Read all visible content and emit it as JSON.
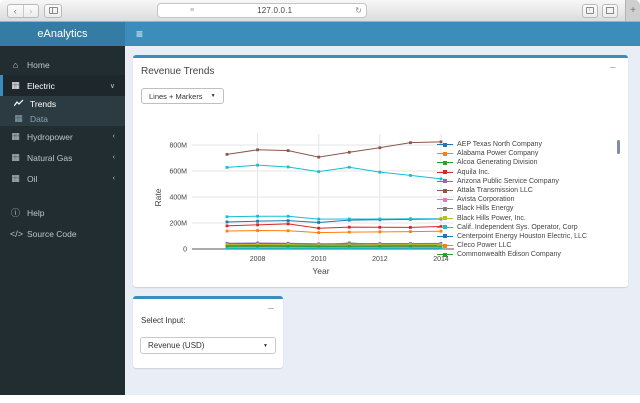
{
  "chrome": {
    "url": "127.0.0.1",
    "back_glyph": "‹",
    "forward_glyph": "›",
    "reader_glyph": "≡",
    "refresh_glyph": "↻",
    "new_tab_glyph": "+"
  },
  "header": {
    "brand": "eAnalytics",
    "menu_toggle_glyph": "≡"
  },
  "sidebar": {
    "items": [
      {
        "id": "home",
        "label": "Home",
        "icon": "home-icon",
        "glyph": "⌂"
      },
      {
        "id": "electric",
        "label": "Electric",
        "icon": "grid-icon",
        "glyph": "▦",
        "chevron": "∨",
        "active": true
      },
      {
        "id": "trends",
        "label": "Trends",
        "icon": "line-chart-icon",
        "glyph": "chart",
        "sub": true,
        "selected": true
      },
      {
        "id": "data",
        "label": "Data",
        "icon": "data-table-icon",
        "glyph": "▦",
        "sub": true
      },
      {
        "id": "hydropower",
        "label": "Hydropower",
        "icon": "grid-icon",
        "glyph": "▦",
        "chevron": "‹"
      },
      {
        "id": "natural-gas",
        "label": "Natural Gas",
        "icon": "grid-icon",
        "glyph": "▦",
        "chevron": "‹"
      },
      {
        "id": "oil",
        "label": "Oil",
        "icon": "grid-icon",
        "glyph": "▦",
        "chevron": "‹"
      },
      {
        "id": "help",
        "label": "Help",
        "icon": "info-icon",
        "glyph": "ⓘ",
        "gap": true
      },
      {
        "id": "source-code",
        "label": "Source Code",
        "icon": "code-icon",
        "glyph": "</>"
      }
    ]
  },
  "panels": {
    "revenue_trends": {
      "title": "Revenue Trends",
      "collapse_glyph": "−",
      "type_selector": {
        "value": "Lines + Markers",
        "caret": "▼"
      }
    },
    "select_input": {
      "collapse_glyph": "−",
      "label": "Select Input:",
      "dropdown": {
        "value": "Revenue (USD)",
        "caret": "▼"
      }
    }
  },
  "chart_data": {
    "type": "line",
    "mode": "lines+markers",
    "marker_shape": "square",
    "xlabel": "Year",
    "ylabel": "Rate",
    "x": [
      2007,
      2008,
      2009,
      2010,
      2011,
      2012,
      2013,
      2014
    ],
    "xticks": [
      2008,
      2010,
      2012,
      2014
    ],
    "ytick_values": [
      0,
      200,
      400,
      600,
      800
    ],
    "ytick_labels": [
      "0",
      "200M",
      "400M",
      "600M",
      "800M"
    ],
    "ylim": [
      0,
      880
    ],
    "value_unit": "millions USD",
    "grid": true,
    "legend_position": "right",
    "legend_scrollable": true,
    "series": [
      {
        "name": "AEP Texas North Company",
        "color": "#1f77b4",
        "in_legend": true,
        "values": [
          38,
          40,
          39,
          35,
          36,
          36,
          37,
          38
        ]
      },
      {
        "name": "Alabama Power Company",
        "color": "#ff7f0e",
        "in_legend": true,
        "values": [
          138,
          142,
          140,
          126,
          130,
          132,
          134,
          137
        ]
      },
      {
        "name": "Alcoa Generating Division",
        "color": "#2ca02c",
        "in_legend": true,
        "values": [
          26,
          27,
          26,
          23,
          24,
          25,
          25,
          26
        ]
      },
      {
        "name": "Aquila Inc.",
        "color": "#d62728",
        "in_legend": true,
        "values": [
          178,
          186,
          193,
          160,
          168,
          167,
          166,
          173
        ]
      },
      {
        "name": "Arizona Public Service Company",
        "color": "#9467bd",
        "in_legend": true,
        "values": [
          44,
          46,
          44,
          40,
          41,
          42,
          42,
          43
        ]
      },
      {
        "name": "Attala Transmission LLC",
        "color": "#8c564b",
        "in_legend": true,
        "values": [
          728,
          763,
          757,
          707,
          744,
          779,
          818,
          824
        ]
      },
      {
        "name": "Avista Corporation",
        "color": "#e377c2",
        "in_legend": true,
        "values": [
          16,
          17,
          17,
          15,
          15,
          16,
          16,
          17
        ]
      },
      {
        "name": "Black Hills Energy",
        "color": "#7f7f7f",
        "in_legend": true,
        "values": [
          32,
          36,
          33,
          30,
          47,
          32,
          31,
          32
        ]
      },
      {
        "name": "Black Hills Power, Inc.",
        "color": "#bcbd22",
        "in_legend": true,
        "values": [
          34,
          35,
          34,
          31,
          32,
          33,
          34,
          35
        ]
      },
      {
        "name": "Calif. Independent Sys. Operator, Corp",
        "color": "#17becf",
        "in_legend": true,
        "values": [
          628,
          645,
          631,
          595,
          629,
          591,
          566,
          539
        ]
      },
      {
        "name": "Centerpoint Energy Houston Electric, LLC",
        "color": "#1f77b4",
        "in_legend": true,
        "values": [
          208,
          214,
          218,
          204,
          222,
          225,
          228,
          231
        ]
      },
      {
        "name": "Cleco Power LLC",
        "color": "#ff7f0e",
        "in_legend": true,
        "values": [
          9,
          10,
          10,
          9,
          9,
          10,
          10,
          11
        ]
      },
      {
        "name": "Commonwealth Edison Company",
        "color": "#2ca02c",
        "in_legend": true,
        "values": [
          20,
          21,
          20,
          19,
          20,
          20,
          21,
          21
        ]
      },
      {
        "name": "",
        "color": "#17becf",
        "in_legend": false,
        "values": [
          248,
          252,
          252,
          230,
          231,
          231,
          233,
          233
        ]
      },
      {
        "name": "",
        "color": "#17becf",
        "in_legend": false,
        "values": [
          5,
          5,
          5,
          5,
          5,
          5,
          5,
          6
        ]
      }
    ]
  },
  "colors": {
    "brand_bg": "#357ca5",
    "navbar_bg": "#3c8dbc",
    "sidebar_bg": "#222d32",
    "submenu_bg": "#2c3b41",
    "content_bg": "#e9edf5",
    "box_accent": "#3c8dbc"
  }
}
